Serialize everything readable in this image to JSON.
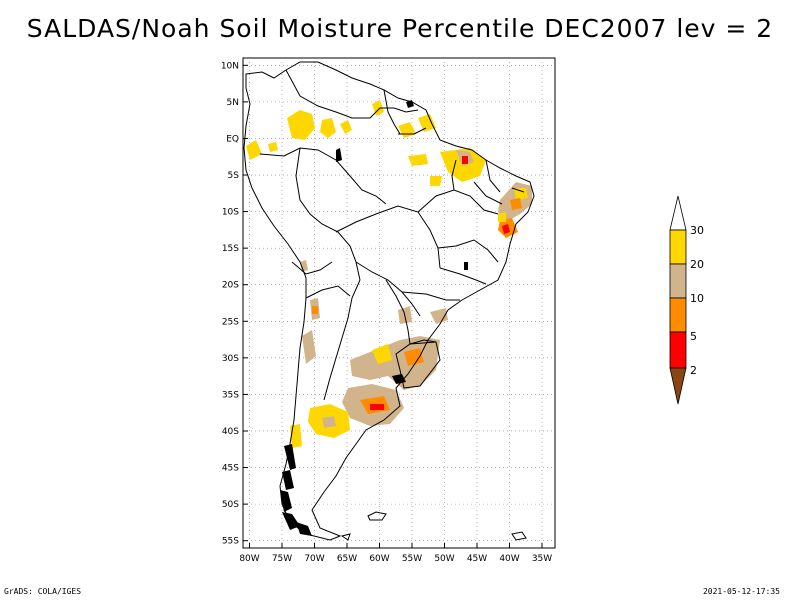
{
  "title": "SALDAS/Noah Soil Moisture Percentile DEC2007 lev = 2",
  "map": {
    "lat_labels": [
      "10N",
      "5N",
      "EQ",
      "5S",
      "10S",
      "15S",
      "20S",
      "25S",
      "30S",
      "35S",
      "40S",
      "45S",
      "50S",
      "55S"
    ],
    "lon_labels": [
      "80W",
      "75W",
      "70W",
      "65W",
      "60W",
      "55W",
      "50W",
      "45W",
      "40W",
      "35W"
    ],
    "lon_range": [
      -81,
      -33
    ],
    "lat_range": [
      -56,
      11
    ]
  },
  "legend": {
    "levels": [
      "2",
      "5",
      "10",
      "20",
      "30"
    ],
    "colors": {
      "below_2": "#8b4513",
      "2_5": "#ff0000",
      "5_10": "#ff8c00",
      "10_20": "#d2b48c",
      "20_30": "#ffd700",
      "above_30": "#ffffff"
    }
  },
  "footer": {
    "left": "GrADS: COLA/IGES",
    "right": "2021-05-12-17:35"
  }
}
